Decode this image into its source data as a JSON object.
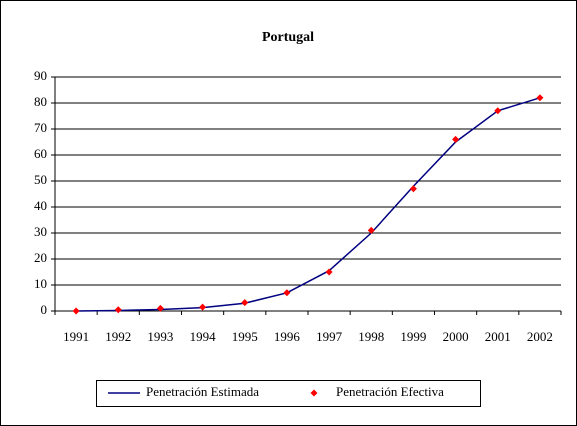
{
  "chart_data": {
    "type": "line",
    "title": "Portugal",
    "categories": [
      "1991",
      "1992",
      "1993",
      "1994",
      "1995",
      "1996",
      "1997",
      "1998",
      "1999",
      "2000",
      "2001",
      "2002"
    ],
    "series": [
      {
        "name": "Penetración Estimada",
        "color": "#000080",
        "kind": "line",
        "values": [
          0,
          0.2,
          0.6,
          1.3,
          3,
          7,
          15.5,
          30,
          48,
          65,
          77,
          82
        ]
      },
      {
        "name": "Penetración Efectiva",
        "color": "#ff0000",
        "kind": "scatter",
        "marker": "diamond",
        "values": [
          0,
          0.5,
          1,
          1.5,
          3.2,
          7,
          15,
          31,
          47,
          66,
          77,
          82
        ]
      }
    ],
    "ylim": [
      0,
      90
    ],
    "yticks": [
      0,
      10,
      20,
      30,
      40,
      50,
      60,
      70,
      80,
      90
    ],
    "grid": true,
    "legend": "bottom"
  }
}
